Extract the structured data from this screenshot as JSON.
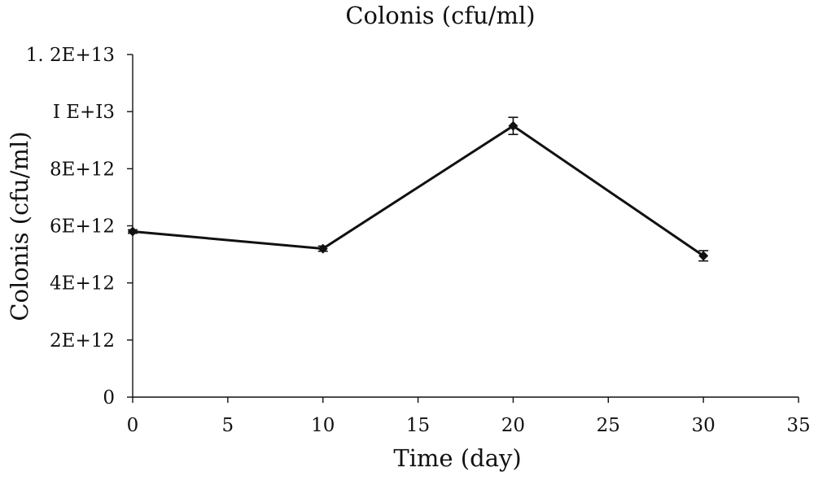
{
  "chart_data": {
    "type": "line",
    "title": "Colonis (cfu/ml)",
    "xlabel": "Time (day)",
    "ylabel": "Colonis (cfu/ml)",
    "xlim": [
      0,
      35
    ],
    "ylim": [
      0,
      12000000000000
    ],
    "x_ticks": [
      0,
      5,
      10,
      15,
      20,
      25,
      30,
      35
    ],
    "x_tick_labels": [
      "0",
      "5",
      "10",
      "15",
      "20",
      "25",
      "30",
      "35"
    ],
    "y_ticks": [
      0,
      2000000000000,
      4000000000000,
      6000000000000,
      8000000000000,
      10000000000000,
      12000000000000
    ],
    "y_tick_labels": [
      "0",
      "2E+12",
      "4E+12",
      "6E+12",
      "8E+12",
      "I E+I3",
      "1. 2E+13"
    ],
    "grid": false,
    "series": [
      {
        "x": [
          0,
          10,
          20,
          30
        ],
        "values": [
          5800000000000,
          5200000000000,
          9500000000000,
          4950000000000
        ],
        "error": [
          60000000000,
          90000000000,
          300000000000,
          180000000000
        ],
        "color": "#111111",
        "marker": "diamond"
      }
    ]
  }
}
